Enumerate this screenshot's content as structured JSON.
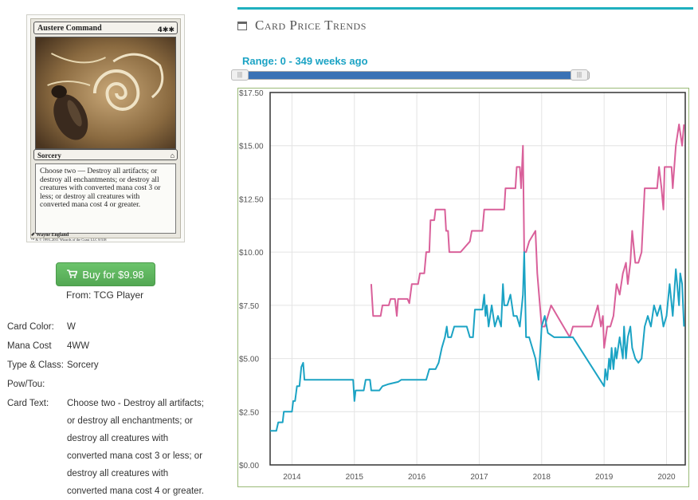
{
  "card_image": {
    "name": "Austere Command",
    "mana": "4✱✱",
    "type": "Sorcery",
    "rules_text": "Choose two — Destroy all artifacts; or destroy all enchantments; or destroy all creatures with converted mana cost 3 or less; or destroy all creatures with converted mana cost 4 or greater.",
    "artist": "Wayne England",
    "copyright": "™ & © 1993–2011 Wizards of the Coast LLC 8/318"
  },
  "buy": {
    "label": "Buy for $9.98",
    "from": "From: TCG Player"
  },
  "properties": [
    {
      "key": "Card Color:",
      "value": "W"
    },
    {
      "key": "Mana Cost",
      "value": "4WW"
    },
    {
      "key": "Type & Class:",
      "value": "Sorcery"
    },
    {
      "key": "Pow/Tou:",
      "value": ""
    },
    {
      "key": "Card Text:",
      "value": "Choose two - Destroy all artifacts; or destroy all enchantments; or destroy all creatures with converted mana cost 3 or less; or destroy all creatures with converted mana cost 4 or greater."
    }
  ],
  "section": {
    "title": "Card Price Trends",
    "icon": "calendar-icon"
  },
  "range": {
    "label": "Range: 0 - 349 weeks ago",
    "handle_glyph": "|||"
  },
  "chart_data": {
    "type": "line",
    "xlabel": "",
    "ylabel": "",
    "x_domain": [
      2013.65,
      2020.3
    ],
    "ylim": [
      0,
      17.5
    ],
    "y_ticks": [
      0,
      2.5,
      5,
      7.5,
      10,
      12.5,
      15,
      17.5
    ],
    "y_tick_labels": [
      "$0.00",
      "$2.50",
      "$5.00",
      "$7.50",
      "$10.00",
      "$12.50",
      "$15.00",
      "$17.50"
    ],
    "x_ticks": [
      2014,
      2015,
      2016,
      2017,
      2018,
      2019,
      2020
    ],
    "x_tick_labels": [
      "2014",
      "2015",
      "2016",
      "2017",
      "2018",
      "2019",
      "2020"
    ],
    "grid": true,
    "colors": {
      "pink": "#d9609a",
      "teal": "#1ba3c4"
    },
    "series": [
      {
        "color": "#d9609a",
        "points": [
          [
            2015.27,
            8.5
          ],
          [
            2015.3,
            7.0
          ],
          [
            2015.42,
            7.0
          ],
          [
            2015.45,
            7.5
          ],
          [
            2015.55,
            7.5
          ],
          [
            2015.58,
            7.8
          ],
          [
            2015.65,
            7.8
          ],
          [
            2015.68,
            7.0
          ],
          [
            2015.7,
            7.8
          ],
          [
            2015.85,
            7.8
          ],
          [
            2015.88,
            7.6
          ],
          [
            2015.92,
            8.5
          ],
          [
            2015.98,
            8.5
          ],
          [
            2016.02,
            8.5
          ],
          [
            2016.05,
            9.0
          ],
          [
            2016.12,
            9.0
          ],
          [
            2016.15,
            10.0
          ],
          [
            2016.2,
            10.0
          ],
          [
            2016.22,
            11.5
          ],
          [
            2016.28,
            11.5
          ],
          [
            2016.3,
            12.0
          ],
          [
            2016.45,
            12.0
          ],
          [
            2016.47,
            11.0
          ],
          [
            2016.5,
            11.0
          ],
          [
            2016.52,
            10.0
          ],
          [
            2016.7,
            10.0
          ],
          [
            2016.85,
            10.5
          ],
          [
            2016.88,
            11.0
          ],
          [
            2017.05,
            11.0
          ],
          [
            2017.08,
            12.0
          ],
          [
            2017.4,
            12.0
          ],
          [
            2017.42,
            13.0
          ],
          [
            2017.58,
            13.0
          ],
          [
            2017.6,
            14.0
          ],
          [
            2017.65,
            14.0
          ],
          [
            2017.67,
            13.0
          ],
          [
            2017.7,
            15.0
          ],
          [
            2017.72,
            10.0
          ],
          [
            2017.75,
            10.0
          ],
          [
            2017.8,
            10.5
          ],
          [
            2017.9,
            11.0
          ],
          [
            2017.93,
            9.0
          ],
          [
            2018.0,
            6.5
          ],
          [
            2018.05,
            6.5
          ],
          [
            2018.1,
            7.0
          ],
          [
            2018.15,
            7.5
          ],
          [
            2018.25,
            7.0
          ],
          [
            2018.35,
            6.5
          ],
          [
            2018.45,
            6.0
          ],
          [
            2018.5,
            6.5
          ],
          [
            2018.8,
            6.5
          ],
          [
            2018.85,
            7.0
          ],
          [
            2018.9,
            7.5
          ],
          [
            2018.95,
            6.5
          ],
          [
            2018.98,
            7.0
          ],
          [
            2019.0,
            5.5
          ],
          [
            2019.05,
            6.5
          ],
          [
            2019.1,
            6.5
          ],
          [
            2019.15,
            7.0
          ],
          [
            2019.2,
            8.5
          ],
          [
            2019.25,
            8.0
          ],
          [
            2019.3,
            9.0
          ],
          [
            2019.35,
            9.5
          ],
          [
            2019.38,
            8.5
          ],
          [
            2019.42,
            9.5
          ],
          [
            2019.45,
            11.0
          ],
          [
            2019.5,
            9.5
          ],
          [
            2019.55,
            9.5
          ],
          [
            2019.6,
            10.0
          ],
          [
            2019.65,
            13.0
          ],
          [
            2019.85,
            13.0
          ],
          [
            2019.88,
            14.0
          ],
          [
            2019.92,
            13.0
          ],
          [
            2019.95,
            12.0
          ],
          [
            2019.97,
            14.0
          ],
          [
            2020.08,
            14.0
          ],
          [
            2020.1,
            13.0
          ],
          [
            2020.15,
            15.0
          ],
          [
            2020.2,
            16.0
          ],
          [
            2020.25,
            15.0
          ],
          [
            2020.28,
            16.0
          ]
        ]
      },
      {
        "color": "#1ba3c4",
        "points": [
          [
            2013.65,
            1.6
          ],
          [
            2013.75,
            1.6
          ],
          [
            2013.78,
            2.0
          ],
          [
            2013.85,
            2.0
          ],
          [
            2013.87,
            2.5
          ],
          [
            2014.0,
            2.5
          ],
          [
            2014.02,
            3.0
          ],
          [
            2014.05,
            3.0
          ],
          [
            2014.08,
            3.7
          ],
          [
            2014.12,
            3.7
          ],
          [
            2014.15,
            4.6
          ],
          [
            2014.18,
            4.8
          ],
          [
            2014.2,
            4.0
          ],
          [
            2014.98,
            4.0
          ],
          [
            2015.0,
            3.0
          ],
          [
            2015.02,
            3.5
          ],
          [
            2015.15,
            3.5
          ],
          [
            2015.18,
            4.0
          ],
          [
            2015.25,
            4.0
          ],
          [
            2015.27,
            3.5
          ],
          [
            2015.4,
            3.5
          ],
          [
            2015.45,
            3.7
          ],
          [
            2015.55,
            3.8
          ],
          [
            2015.7,
            3.9
          ],
          [
            2015.75,
            4.0
          ],
          [
            2016.15,
            4.0
          ],
          [
            2016.2,
            4.5
          ],
          [
            2016.3,
            4.5
          ],
          [
            2016.35,
            4.8
          ],
          [
            2016.4,
            5.5
          ],
          [
            2016.45,
            6.0
          ],
          [
            2016.48,
            6.5
          ],
          [
            2016.5,
            6.0
          ],
          [
            2016.55,
            6.0
          ],
          [
            2016.6,
            6.5
          ],
          [
            2016.8,
            6.5
          ],
          [
            2016.85,
            6.0
          ],
          [
            2016.9,
            6.0
          ],
          [
            2016.93,
            7.3
          ],
          [
            2017.05,
            7.3
          ],
          [
            2017.08,
            8.0
          ],
          [
            2017.1,
            7.0
          ],
          [
            2017.12,
            7.5
          ],
          [
            2017.15,
            6.5
          ],
          [
            2017.2,
            7.5
          ],
          [
            2017.25,
            6.5
          ],
          [
            2017.3,
            7.0
          ],
          [
            2017.35,
            6.5
          ],
          [
            2017.38,
            8.5
          ],
          [
            2017.4,
            7.5
          ],
          [
            2017.45,
            7.5
          ],
          [
            2017.5,
            8.0
          ],
          [
            2017.55,
            7.0
          ],
          [
            2017.6,
            7.0
          ],
          [
            2017.65,
            6.5
          ],
          [
            2017.7,
            8.0
          ],
          [
            2017.72,
            10.0
          ],
          [
            2017.75,
            6.0
          ],
          [
            2017.8,
            6.0
          ],
          [
            2017.9,
            5.0
          ],
          [
            2017.95,
            4.0
          ],
          [
            2018.0,
            6.5
          ],
          [
            2018.05,
            7.0
          ],
          [
            2018.08,
            6.5
          ],
          [
            2018.1,
            6.2
          ],
          [
            2018.2,
            6.0
          ],
          [
            2018.45,
            6.0
          ],
          [
            2018.5,
            6.0
          ],
          [
            2019.0,
            3.7
          ],
          [
            2019.02,
            4.5
          ],
          [
            2019.05,
            4.0
          ],
          [
            2019.08,
            5.0
          ],
          [
            2019.1,
            4.5
          ],
          [
            2019.12,
            5.5
          ],
          [
            2019.15,
            4.5
          ],
          [
            2019.18,
            5.5
          ],
          [
            2019.2,
            5.0
          ],
          [
            2019.25,
            6.0
          ],
          [
            2019.3,
            5.0
          ],
          [
            2019.32,
            6.5
          ],
          [
            2019.35,
            5.0
          ],
          [
            2019.38,
            6.0
          ],
          [
            2019.42,
            6.5
          ],
          [
            2019.45,
            5.5
          ],
          [
            2019.5,
            5.0
          ],
          [
            2019.55,
            4.8
          ],
          [
            2019.6,
            5.0
          ],
          [
            2019.65,
            6.5
          ],
          [
            2019.7,
            7.0
          ],
          [
            2019.75,
            6.5
          ],
          [
            2019.8,
            7.5
          ],
          [
            2019.85,
            7.0
          ],
          [
            2019.9,
            7.5
          ],
          [
            2019.95,
            6.5
          ],
          [
            2020.0,
            7.0
          ],
          [
            2020.05,
            8.5
          ],
          [
            2020.1,
            7.0
          ],
          [
            2020.15,
            9.2
          ],
          [
            2020.2,
            7.5
          ],
          [
            2020.22,
            9.0
          ],
          [
            2020.25,
            8.5
          ],
          [
            2020.28,
            6.5
          ]
        ]
      }
    ]
  }
}
